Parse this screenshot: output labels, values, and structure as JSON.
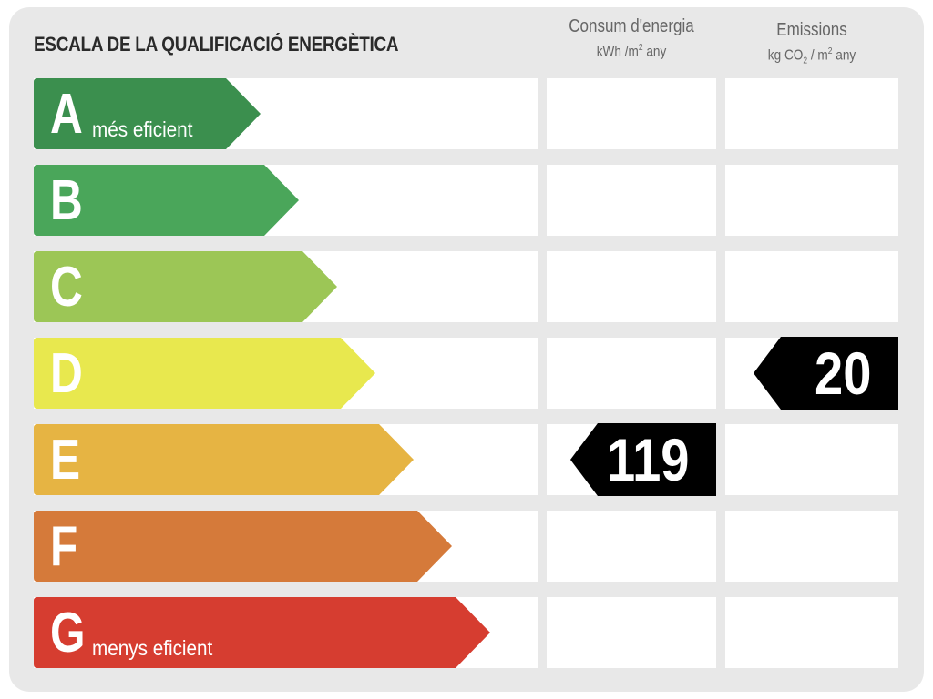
{
  "title": "ESCALA DE LA QUALIFICACIÓ ENERGÈTICA",
  "columns": {
    "energy": {
      "label": "Consum d'energia",
      "unit_pre": "kWh /m",
      "unit_sup": "2",
      "unit_post": " any"
    },
    "emissions": {
      "label": "Emissions",
      "unit_pre": "kg CO",
      "unit_sub": "2",
      "unit_mid": " / m",
      "unit_sup": "2",
      "unit_post": " any"
    }
  },
  "classes": [
    {
      "letter": "A",
      "sub": "més eficient",
      "color": "#3b8f4e"
    },
    {
      "letter": "B",
      "sub": "",
      "color": "#4aa65a"
    },
    {
      "letter": "C",
      "sub": "",
      "color": "#9cc656"
    },
    {
      "letter": "D",
      "sub": "",
      "color": "#e8e84e"
    },
    {
      "letter": "E",
      "sub": "",
      "color": "#e6b443"
    },
    {
      "letter": "F",
      "sub": "",
      "color": "#d57a3a"
    },
    {
      "letter": "G",
      "sub": "menys eficient",
      "color": "#d63d30"
    }
  ],
  "ratings": {
    "energy": {
      "value": "119",
      "class": "E"
    },
    "emissions": {
      "value": "20",
      "class": "D"
    }
  }
}
